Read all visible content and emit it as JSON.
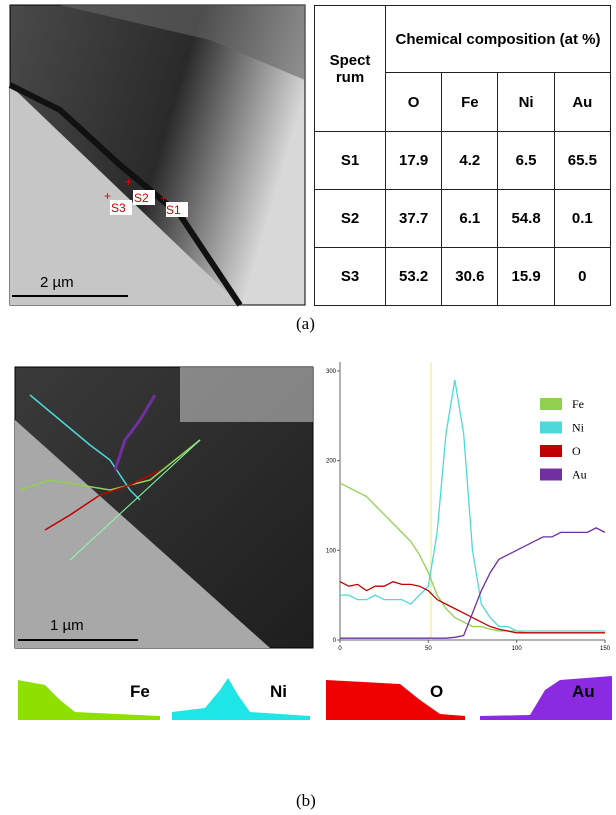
{
  "panel_a": {
    "image": {
      "markers": [
        "S1",
        "S2",
        "S3"
      ],
      "scale_bar": "2 µm"
    },
    "table": {
      "header": {
        "spectrum": "Spect rum",
        "group": "Chemical composition (at %)",
        "columns": [
          "O",
          "Fe",
          "Ni",
          "Au"
        ]
      },
      "rows": [
        [
          "S1",
          "17.9",
          "4.2",
          "6.5",
          "65.5"
        ],
        [
          "S2",
          "37.7",
          "6.1",
          "54.8",
          "0.1"
        ],
        [
          "S3",
          "53.2",
          "30.6",
          "15.9",
          "0"
        ]
      ]
    },
    "caption": "(a)"
  },
  "panel_b": {
    "image": {
      "scale_bar": "1 µm"
    },
    "chart_data": {
      "type": "line",
      "x": [
        0,
        5,
        10,
        15,
        20,
        25,
        30,
        35,
        40,
        45,
        50,
        55,
        60,
        65,
        70,
        75,
        80,
        85,
        90,
        95,
        100,
        105,
        110,
        115,
        120,
        125,
        130,
        135,
        140,
        145,
        150
      ],
      "series": [
        {
          "name": "Fe",
          "color": "#92d050",
          "values": [
            175,
            170,
            165,
            160,
            150,
            140,
            130,
            120,
            110,
            95,
            75,
            50,
            35,
            25,
            20,
            15,
            15,
            12,
            10,
            10,
            10,
            8,
            8,
            8,
            8,
            8,
            8,
            8,
            8,
            8,
            8
          ]
        },
        {
          "name": "Ni",
          "color": "#4dd9d9",
          "values": [
            50,
            50,
            45,
            45,
            50,
            45,
            45,
            45,
            40,
            50,
            60,
            120,
            230,
            290,
            230,
            100,
            40,
            25,
            15,
            15,
            10,
            10,
            10,
            10,
            10,
            10,
            10,
            10,
            10,
            10,
            10
          ]
        },
        {
          "name": "O",
          "color": "#c00000",
          "values": [
            65,
            60,
            62,
            55,
            60,
            60,
            65,
            62,
            62,
            60,
            55,
            45,
            40,
            35,
            30,
            25,
            20,
            15,
            12,
            10,
            8,
            8,
            8,
            8,
            8,
            8,
            8,
            8,
            8,
            8,
            8
          ]
        },
        {
          "name": "Au",
          "color": "#7030a0",
          "values": [
            2,
            2,
            2,
            2,
            2,
            2,
            2,
            2,
            2,
            2,
            2,
            2,
            2,
            3,
            5,
            30,
            55,
            75,
            90,
            95,
            100,
            105,
            110,
            115,
            115,
            120,
            120,
            120,
            120,
            125,
            120
          ]
        }
      ],
      "xlim": [
        0,
        150
      ],
      "ylim": [
        0,
        310
      ],
      "xticks": [
        0,
        50,
        100,
        150
      ],
      "yticks": [
        0,
        100,
        200,
        300
      ]
    },
    "maps": [
      "Fe",
      "Ni",
      "O",
      "Au"
    ],
    "caption": "(b)"
  }
}
